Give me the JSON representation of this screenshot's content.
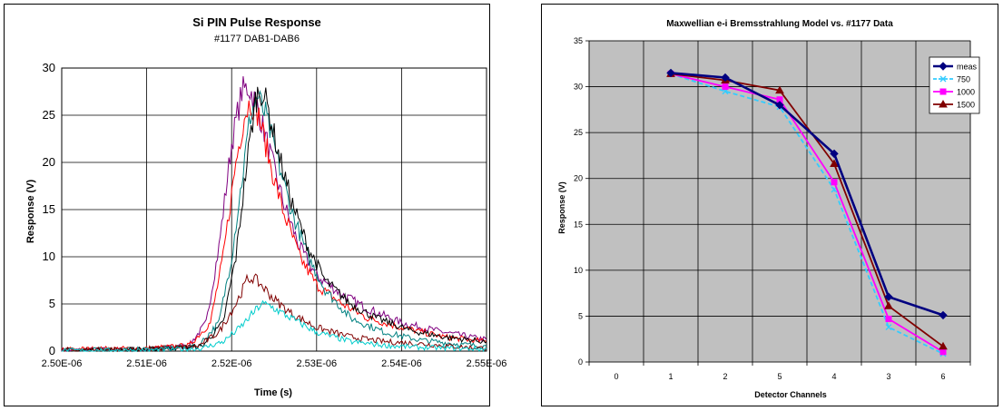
{
  "chart_data": [
    {
      "type": "line",
      "title": "Si PIN Pulse Response",
      "subtitle": "#1177 DAB1-DAB6",
      "xlabel": "Time (s)",
      "ylabel": "Response (V)",
      "xlim": [
        2.5e-06,
        2.55e-06
      ],
      "ylim": [
        0,
        30
      ],
      "x_ticks": [
        "2.50E-06",
        "2.51E-06",
        "2.52E-06",
        "2.53E-06",
        "2.54E-06",
        "2.55E-06"
      ],
      "y_ticks": [
        "0",
        "5",
        "10",
        "15",
        "20",
        "25",
        "30"
      ],
      "grid": true,
      "legend": "none",
      "series": [
        {
          "color": "#800080",
          "values": {
            "x": [
              2.5e-06,
              2.51e-06,
              2.515e-06,
              2.517e-06,
              2.5185e-06,
              2.52e-06,
              2.5212e-06,
              2.522e-06,
              2.523e-06,
              2.5245e-06,
              2.526e-06,
              2.528e-06,
              2.53e-06,
              2.533e-06,
              2.536e-06,
              2.54e-06,
              2.545e-06,
              2.55e-06
            ],
            "y": [
              0.1,
              0.2,
              0.6,
              3,
              11,
              22,
              27.5,
              28,
              26,
              21,
              16,
              11,
              8,
              6,
              4.5,
              3,
              2,
              1.2
            ]
          }
        },
        {
          "color": "#ff0000",
          "values": {
            "x": [
              2.5e-06,
              2.51e-06,
              2.515e-06,
              2.5175e-06,
              2.519e-06,
              2.5205e-06,
              2.5215e-06,
              2.5222e-06,
              2.5232e-06,
              2.5245e-06,
              2.526e-06,
              2.528e-06,
              2.53e-06,
              2.533e-06,
              2.536e-06,
              2.54e-06,
              2.545e-06,
              2.55e-06
            ],
            "y": [
              0.2,
              0.3,
              0.6,
              3,
              10,
              20,
              25,
              26.5,
              25,
              20,
              15,
              10,
              7,
              5,
              3.5,
              2.5,
              1.5,
              1
            ]
          }
        },
        {
          "color": "#008080",
          "values": {
            "x": [
              2.5e-06,
              2.51e-06,
              2.516e-06,
              2.5185e-06,
              2.52e-06,
              2.5212e-06,
              2.5222e-06,
              2.523e-06,
              2.524e-06,
              2.5255e-06,
              2.527e-06,
              2.529e-06,
              2.531e-06,
              2.534e-06,
              2.538e-06,
              2.542e-06,
              2.546e-06,
              2.55e-06
            ],
            "y": [
              0.1,
              0.2,
              0.5,
              3,
              10,
              18,
              25,
              27,
              25,
              20,
              15,
              10,
              6.5,
              3.5,
              2,
              1.2,
              0.8,
              0.5
            ]
          }
        },
        {
          "color": "#000000",
          "values": {
            "x": [
              2.5e-06,
              2.51e-06,
              2.5165e-06,
              2.519e-06,
              2.5205e-06,
              2.5218e-06,
              2.5228e-06,
              2.5233e-06,
              2.5242e-06,
              2.5255e-06,
              2.527e-06,
              2.529e-06,
              2.531e-06,
              2.534e-06,
              2.537e-06,
              2.541e-06,
              2.545e-06,
              2.55e-06
            ],
            "y": [
              0.1,
              0.2,
              0.5,
              3,
              10,
              20,
              26.5,
              28,
              26,
              21,
              16,
              11,
              7.5,
              5,
              3.5,
              2.2,
              1.5,
              1
            ]
          }
        },
        {
          "color": "#800000",
          "values": {
            "x": [
              2.5e-06,
              2.51e-06,
              2.516e-06,
              2.5185e-06,
              2.5205e-06,
              2.5218e-06,
              2.5225e-06,
              2.5235e-06,
              2.525e-06,
              2.527e-06,
              2.53e-06,
              2.534e-06,
              2.538e-06,
              2.542e-06,
              2.546e-06,
              2.55e-06
            ],
            "y": [
              0.1,
              0.2,
              0.5,
              2,
              5,
              7.5,
              7.8,
              7,
              5.5,
              4,
              2.5,
              1.5,
              1,
              0.8,
              0.5,
              0.3
            ]
          }
        },
        {
          "color": "#00cccc",
          "values": {
            "x": [
              2.5e-06,
              2.51e-06,
              2.5165e-06,
              2.519e-06,
              2.521e-06,
              2.5225e-06,
              2.5235e-06,
              2.5245e-06,
              2.526e-06,
              2.528e-06,
              2.53e-06,
              2.534e-06,
              2.538e-06,
              2.542e-06,
              2.546e-06,
              2.55e-06
            ],
            "y": [
              0.05,
              0.1,
              0.3,
              1,
              2.5,
              4,
              5,
              4.8,
              4,
              3,
              2,
              1,
              0.6,
              0.4,
              0.3,
              0.2
            ]
          }
        }
      ]
    },
    {
      "type": "line",
      "title": "Maxwellian e-i Bremsstrahlung Model vs. #1177 Data",
      "xlabel": "Detector Channels",
      "ylabel": "Response (V)",
      "categories": [
        "0",
        "1",
        "2",
        "5",
        "4",
        "3",
        "6"
      ],
      "ylim": [
        0,
        35
      ],
      "y_ticks": [
        "0",
        "5",
        "10",
        "15",
        "20",
        "25",
        "30",
        "35"
      ],
      "grid": true,
      "plot_background": "#c0c0c0",
      "legend": "top-right",
      "series": [
        {
          "name": "meas",
          "color": "#000080",
          "marker": "diamond",
          "dash": "solid",
          "values": [
            null,
            31.5,
            31.0,
            28.0,
            22.7,
            7.1,
            5.1
          ]
        },
        {
          "name": "750",
          "color": "#33ccff",
          "marker": "x",
          "dash": "dashed",
          "values": [
            null,
            31.4,
            29.5,
            27.8,
            18.8,
            3.8,
            0.9
          ]
        },
        {
          "name": "1000",
          "color": "#ff00ff",
          "marker": "square",
          "dash": "solid",
          "values": [
            null,
            31.4,
            30.0,
            28.6,
            19.6,
            4.7,
            1.1
          ]
        },
        {
          "name": "1500",
          "color": "#800000",
          "marker": "triangle",
          "dash": "solid",
          "values": [
            null,
            31.4,
            30.7,
            29.6,
            21.6,
            6.1,
            1.7
          ]
        }
      ]
    }
  ]
}
